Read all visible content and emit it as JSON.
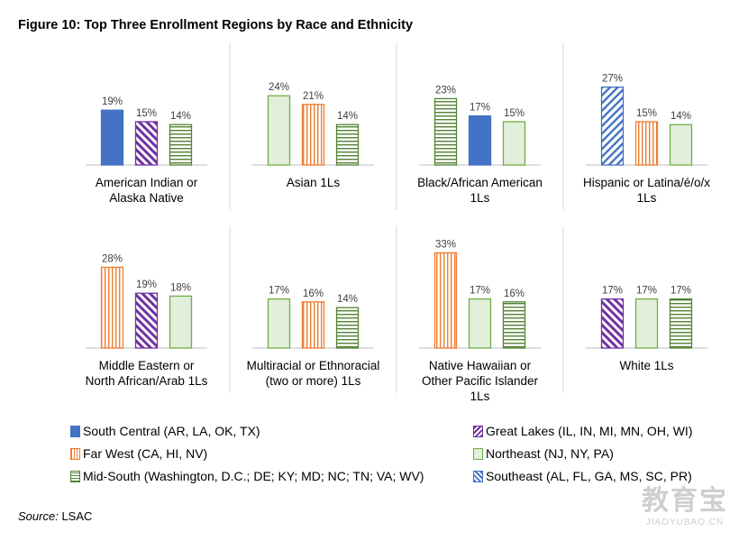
{
  "title": "Figure 10: Top Three Enrollment Regions by Race and Ethnicity",
  "source_label": "Source:",
  "source_value": "LSAC",
  "watermark": {
    "big": "教育宝",
    "small": "JIAOYUBAO.CN"
  },
  "colors": {
    "South Central": "#4472c4",
    "Great Lakes": "#7030a0",
    "Far West": "#ed7d31",
    "Northeast": "#70ad47",
    "Mid-South": "#548235",
    "Southeast": "#4472c4"
  },
  "legend": [
    {
      "key": "South Central",
      "label": "South Central (AR, LA, OK, TX)"
    },
    {
      "key": "Great Lakes",
      "label": "Great Lakes (IL, IN, MI, MN, OH, WI)"
    },
    {
      "key": "Far West",
      "label": "Far West (CA, HI, NV)"
    },
    {
      "key": "Northeast",
      "label": "Northeast (NJ, NY, PA)"
    },
    {
      "key": "Mid-South",
      "label": "Mid-South (Washington, D.C.; DE; KY; MD; NC; TN; VA; WV)"
    },
    {
      "key": "Southeast",
      "label": "Southeast (AL, FL, GA, MS, SC, PR)"
    }
  ],
  "chart_data": [
    {
      "type": "bar",
      "category": "American Indian or Alaska Native",
      "label_lines": [
        "American Indian or",
        "Alaska Native"
      ],
      "bars": [
        {
          "region": "South Central",
          "value": 19,
          "label": "19%"
        },
        {
          "region": "Great Lakes",
          "value": 15,
          "label": "15%"
        },
        {
          "region": "Mid-South",
          "value": 14,
          "label": "14%"
        }
      ]
    },
    {
      "type": "bar",
      "category": "Asian 1Ls",
      "label_lines": [
        "Asian 1Ls"
      ],
      "bars": [
        {
          "region": "Northeast",
          "value": 24,
          "label": "24%"
        },
        {
          "region": "Far West",
          "value": 21,
          "label": "21%"
        },
        {
          "region": "Mid-South",
          "value": 14,
          "label": "14%"
        }
      ]
    },
    {
      "type": "bar",
      "category": "Black/African American 1Ls",
      "label_lines": [
        "Black/African American",
        "1Ls"
      ],
      "bars": [
        {
          "region": "Mid-South",
          "value": 23,
          "label": "23%"
        },
        {
          "region": "South Central",
          "value": 17,
          "label": "17%"
        },
        {
          "region": "Northeast",
          "value": 15,
          "label": "15%"
        }
      ]
    },
    {
      "type": "bar",
      "category": "Hispanic or Latina/é/o/x 1Ls",
      "label_lines": [
        "Hispanic or Latina/é/o/x",
        "1Ls"
      ],
      "bars": [
        {
          "region": "Southeast",
          "value": 27,
          "label": "27%"
        },
        {
          "region": "Far West",
          "value": 15,
          "label": "15%"
        },
        {
          "region": "Northeast",
          "value": 14,
          "label": "14%"
        }
      ]
    },
    {
      "type": "bar",
      "category": "Middle Eastern or North African/Arab 1Ls",
      "label_lines": [
        "Middle Eastern or",
        "North African/Arab 1Ls"
      ],
      "bars": [
        {
          "region": "Far West",
          "value": 28,
          "label": "28%"
        },
        {
          "region": "Great Lakes",
          "value": 19,
          "label": "19%"
        },
        {
          "region": "Northeast",
          "value": 18,
          "label": "18%"
        }
      ]
    },
    {
      "type": "bar",
      "category": "Multiracial or Ethnoracial (two or more) 1Ls",
      "label_lines": [
        "Multiracial or Ethnoracial",
        "(two or more) 1Ls"
      ],
      "bars": [
        {
          "region": "Northeast",
          "value": 17,
          "label": "17%"
        },
        {
          "region": "Far West",
          "value": 16,
          "label": "16%"
        },
        {
          "region": "Mid-South",
          "value": 14,
          "label": "14%"
        }
      ]
    },
    {
      "type": "bar",
      "category": "Native Hawaiian or Other Pacific Islander 1Ls",
      "label_lines": [
        "Native Hawaiian or",
        "Other Pacific Islander",
        "1Ls"
      ],
      "bars": [
        {
          "region": "Far West",
          "value": 33,
          "label": "33%"
        },
        {
          "region": "Northeast",
          "value": 17,
          "label": "17%"
        },
        {
          "region": "Mid-South",
          "value": 16,
          "label": "16%"
        }
      ]
    },
    {
      "type": "bar",
      "category": "White 1Ls",
      "label_lines": [
        "White 1Ls"
      ],
      "bars": [
        {
          "region": "Great Lakes",
          "value": 17,
          "label": "17%"
        },
        {
          "region": "Northeast",
          "value": 17,
          "label": "17%"
        },
        {
          "region": "Mid-South",
          "value": 17,
          "label": "17%"
        }
      ]
    }
  ]
}
